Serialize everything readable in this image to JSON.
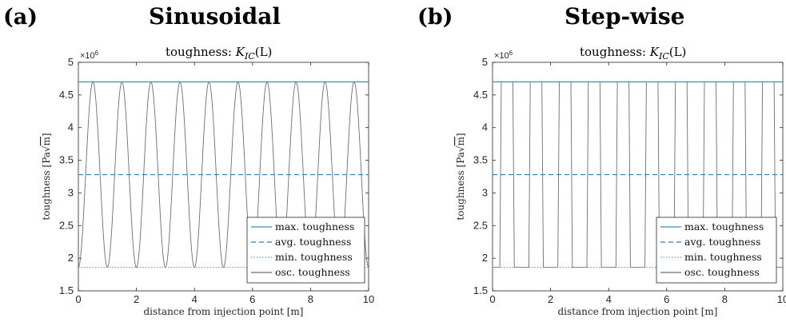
{
  "panels": [
    {
      "letter": "(a)",
      "heading": "Sinusoidal",
      "title_prefix": "toughness: ",
      "title_math": "K",
      "title_sub": "IC",
      "title_suffix": "(L)",
      "xlabel": "distance from injection point [m]",
      "ylabel_text": "toughness [Pa",
      "ylabel_sqrt": "√",
      "ylabel_unit": "m",
      "ylabel_close": "]",
      "exponent_base": "×10",
      "exponent_power": "6",
      "xticks": [
        "0",
        "2",
        "4",
        "6",
        "8",
        "10"
      ],
      "yticks": [
        "1.5",
        "2",
        "2.5",
        "3",
        "3.5",
        "4",
        "4.5",
        "5"
      ],
      "legend": [
        "max. toughness",
        "avg. toughness",
        "min. toughness",
        "osc. toughness"
      ]
    },
    {
      "letter": "(b)",
      "heading": "Step-wise",
      "title_prefix": "toughness: ",
      "title_math": "K",
      "title_sub": "IC",
      "title_suffix": "(L)",
      "xlabel": "distance from injection point [m]",
      "ylabel_text": "toughness [Pa",
      "ylabel_sqrt": "√",
      "ylabel_unit": "m",
      "ylabel_close": "]",
      "exponent_base": "×10",
      "exponent_power": "6",
      "xticks": [
        "0",
        "2",
        "4",
        "6",
        "8",
        "10"
      ],
      "yticks": [
        "1.5",
        "2",
        "2.5",
        "3",
        "3.5",
        "4",
        "4.5",
        "5"
      ],
      "legend": [
        "max. toughness",
        "avg. toughness",
        "min. toughness",
        "osc. toughness"
      ]
    }
  ],
  "colors": {
    "max": "#3c8dbc",
    "avg": "#2f7fc0",
    "min": "#5aa8d8",
    "osc": "#6e6e6e"
  },
  "chart_data": [
    {
      "type": "line",
      "title": "toughness: K_IC(L)",
      "xlabel": "distance from injection point [m]",
      "ylabel": "toughness [Pa√m]",
      "xlim": [
        0,
        10
      ],
      "ylim": [
        1500000,
        5000000
      ],
      "series": [
        {
          "name": "max. toughness",
          "style": "solid",
          "constant": 4700000
        },
        {
          "name": "avg. toughness",
          "style": "dashed",
          "constant": 3280000
        },
        {
          "name": "min. toughness",
          "style": "dotted",
          "constant": 1860000
        },
        {
          "name": "osc. toughness",
          "style": "solid",
          "form": "sinusoidal",
          "period": 1.0,
          "min": 1860000,
          "max": 4700000,
          "start_x": 0,
          "start_y": 1860000
        }
      ],
      "legend": "bottom-right",
      "grid": false
    },
    {
      "type": "line",
      "title": "toughness: K_IC(L)",
      "xlabel": "distance from injection point [m]",
      "ylabel": "toughness [Pa√m]",
      "xlim": [
        0,
        10
      ],
      "ylim": [
        1500000,
        5000000
      ],
      "series": [
        {
          "name": "max. toughness",
          "style": "solid",
          "constant": 4700000
        },
        {
          "name": "avg. toughness",
          "style": "dashed",
          "constant": 3280000
        },
        {
          "name": "min. toughness",
          "style": "dotted",
          "constant": 1860000
        },
        {
          "name": "osc. toughness",
          "style": "solid",
          "form": "step",
          "x": [
            0,
            0.25,
            0.3,
            0.7,
            0.75,
            1.25,
            1.3,
            1.7,
            1.75,
            2.25,
            2.3,
            2.7,
            2.75,
            3.25,
            3.3,
            3.7,
            3.75,
            4.25,
            4.3,
            4.7,
            4.75,
            5.25,
            5.3,
            5.7,
            5.75,
            6.25,
            6.3,
            6.7,
            6.75,
            7.25,
            7.3,
            7.7,
            7.75,
            8.25,
            8.3,
            8.7,
            8.75,
            9.25,
            9.3,
            9.7,
            9.75,
            10
          ],
          "y": [
            1860000,
            1860000,
            4700000,
            4700000,
            1860000,
            1860000,
            4700000,
            4700000,
            1860000,
            1860000,
            4700000,
            4700000,
            1860000,
            1860000,
            4700000,
            4700000,
            1860000,
            1860000,
            4700000,
            4700000,
            1860000,
            1860000,
            4700000,
            4700000,
            1860000,
            1860000,
            4700000,
            4700000,
            1860000,
            1860000,
            4700000,
            4700000,
            1860000,
            1860000,
            4700000,
            4700000,
            1860000,
            1860000,
            4700000,
            4700000,
            1860000,
            1860000
          ]
        }
      ],
      "legend": "bottom-right",
      "grid": false
    }
  ]
}
